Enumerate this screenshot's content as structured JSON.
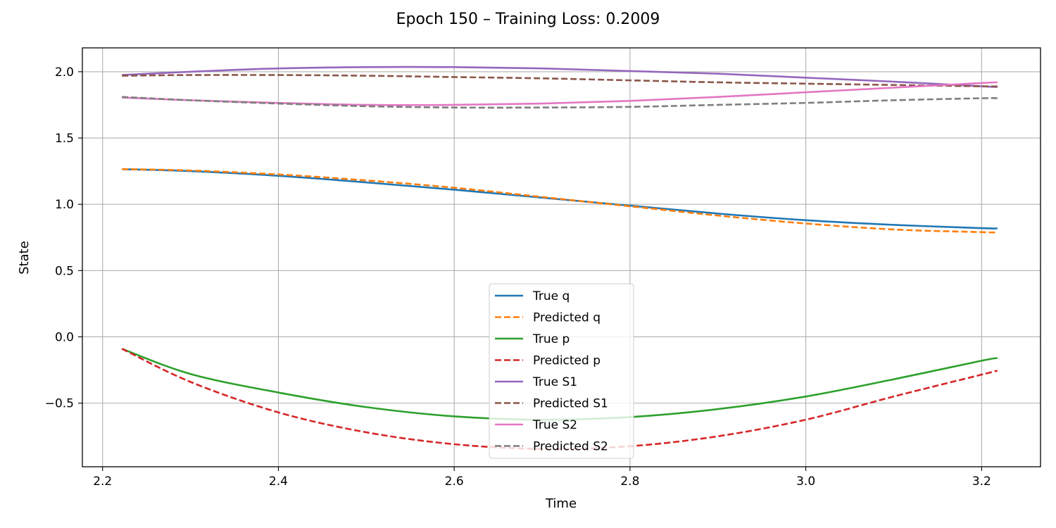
{
  "chart_data": {
    "type": "line",
    "title": "Epoch 150 – Training Loss: 0.2009",
    "xlabel": "Time",
    "ylabel": "State",
    "xlim": [
      2.177,
      3.267
    ],
    "ylim": [
      -0.98,
      2.18
    ],
    "xticks": [
      2.2,
      2.4,
      2.6,
      2.8,
      3.0,
      3.2
    ],
    "xtick_labels": [
      "2.2",
      "2.4",
      "2.6",
      "2.8",
      "3.0",
      "3.2"
    ],
    "yticks": [
      -0.5,
      0.0,
      0.5,
      1.0,
      1.5,
      2.0
    ],
    "ytick_labels": [
      "−0.5",
      "0.0",
      "0.5",
      "1.0",
      "1.5",
      "2.0"
    ],
    "grid": true,
    "legend_position": "lower-center",
    "x": [
      2.222,
      2.3,
      2.4,
      2.5,
      2.6,
      2.7,
      2.8,
      2.9,
      3.0,
      3.1,
      3.2,
      3.218
    ],
    "series": [
      {
        "name": "True q",
        "color": "#1f77b4",
        "dash": false,
        "values": [
          1.265,
          1.25,
          1.215,
          1.165,
          1.11,
          1.05,
          0.99,
          0.93,
          0.88,
          0.845,
          0.82,
          0.818
        ]
      },
      {
        "name": "Predicted q",
        "color": "#ff7f0e",
        "dash": true,
        "values": [
          1.265,
          1.255,
          1.225,
          1.18,
          1.125,
          1.055,
          0.985,
          0.915,
          0.855,
          0.81,
          0.79,
          0.788
        ]
      },
      {
        "name": "True p",
        "color": "#2ca02c",
        "dash": false,
        "values": [
          -0.09,
          -0.28,
          -0.42,
          -0.53,
          -0.6,
          -0.625,
          -0.605,
          -0.545,
          -0.45,
          -0.32,
          -0.18,
          -0.16
        ]
      },
      {
        "name": "Predicted p",
        "color": "#d62728",
        "dash": true,
        "values": [
          -0.09,
          -0.34,
          -0.57,
          -0.72,
          -0.81,
          -0.845,
          -0.825,
          -0.75,
          -0.625,
          -0.45,
          -0.285,
          -0.255
        ]
      },
      {
        "name": "True S1",
        "color": "#9467bd",
        "dash": false,
        "values": [
          1.975,
          2.0,
          2.025,
          2.035,
          2.035,
          2.025,
          2.005,
          1.985,
          1.955,
          1.925,
          1.89,
          1.885
        ]
      },
      {
        "name": "Predicted S1",
        "color": "#8c564b",
        "dash": true,
        "values": [
          1.97,
          1.975,
          1.975,
          1.97,
          1.96,
          1.95,
          1.935,
          1.92,
          1.91,
          1.9,
          1.89,
          1.89
        ]
      },
      {
        "name": "True S2",
        "color": "#e377c2",
        "dash": false,
        "values": [
          1.805,
          1.785,
          1.765,
          1.75,
          1.75,
          1.76,
          1.78,
          1.81,
          1.845,
          1.88,
          1.915,
          1.92
        ]
      },
      {
        "name": "Predicted S2",
        "color": "#7f7f7f",
        "dash": true,
        "values": [
          1.81,
          1.785,
          1.76,
          1.74,
          1.73,
          1.73,
          1.735,
          1.75,
          1.765,
          1.785,
          1.8,
          1.8
        ]
      }
    ]
  }
}
